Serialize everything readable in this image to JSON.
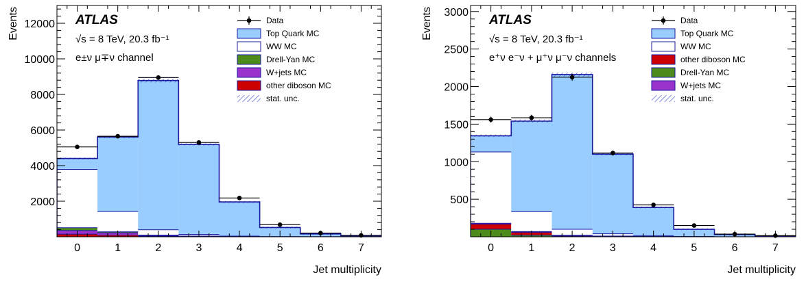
{
  "chart_data": [
    {
      "type": "bar",
      "stacked": true,
      "xlabel": "Jet multiplicity",
      "ylabel": "Events",
      "xlim": [
        -0.5,
        7.5
      ],
      "ylim": [
        0,
        13000
      ],
      "yticks": [
        "2000",
        "4000",
        "6000",
        "8000",
        "10000",
        "12000"
      ],
      "categories": [
        "0",
        "1",
        "2",
        "3",
        "4",
        "5",
        "6",
        "7"
      ],
      "atlas_label": "ATLAS",
      "energy_label": "√s = 8 TeV, 20.3 fb⁻¹",
      "channel_label": "e±ν μ∓ν channel",
      "legend_position": "top-right",
      "series": [
        {
          "name": "other diboson MC",
          "color": "#cc0000",
          "values": [
            150,
            90,
            35,
            15,
            5,
            2,
            1,
            0
          ]
        },
        {
          "name": "W+jets MC",
          "color": "#9933cc",
          "values": [
            200,
            130,
            40,
            20,
            10,
            3,
            1,
            0
          ]
        },
        {
          "name": "Drell-Yan MC",
          "color": "#4d8c1a",
          "values": [
            160,
            60,
            20,
            10,
            5,
            2,
            1,
            0
          ]
        },
        {
          "name": "WW MC",
          "color": "#ffffff",
          "values": [
            3280,
            1140,
            300,
            90,
            20,
            5,
            2,
            0
          ]
        },
        {
          "name": "Top Quark MC",
          "color": "#99ccff",
          "values": [
            610,
            4190,
            8385,
            5055,
            1920,
            508,
            155,
            50
          ]
        }
      ],
      "data": {
        "name": "Data",
        "values": [
          5050,
          5650,
          8950,
          5300,
          2180,
          680,
          210,
          80
        ]
      },
      "stat_unc_label": "stat. unc."
    },
    {
      "type": "bar",
      "stacked": true,
      "xlabel": "Jet multiplicity",
      "ylabel": "Events",
      "xlim": [
        -0.5,
        7.5
      ],
      "ylim": [
        0,
        3080
      ],
      "yticks": [
        "500",
        "1000",
        "1500",
        "2000",
        "2500",
        "3000"
      ],
      "categories": [
        "0",
        "1",
        "2",
        "3",
        "4",
        "5",
        "6",
        "7"
      ],
      "atlas_label": "ATLAS",
      "energy_label": "√s = 8 TeV, 20.3 fb⁻¹",
      "channel_label": "e⁺ν e⁻ν + μ⁺ν μ⁻ν channels",
      "legend_position": "top-right",
      "series": [
        {
          "name": "Drell-Yan MC",
          "color": "#4d8c1a",
          "values": [
            100,
            20,
            5,
            2,
            1,
            0,
            0,
            0
          ]
        },
        {
          "name": "other diboson MC",
          "color": "#cc0000",
          "values": [
            70,
            40,
            10,
            5,
            2,
            1,
            0,
            0
          ]
        },
        {
          "name": "W+jets MC",
          "color": "#9933cc",
          "values": [
            10,
            10,
            5,
            3,
            1,
            0,
            0,
            0
          ]
        },
        {
          "name": "WW MC",
          "color": "#ffffff",
          "values": [
            950,
            265,
            80,
            30,
            8,
            3,
            1,
            0
          ]
        },
        {
          "name": "Top Quark MC",
          "color": "#99ccff",
          "values": [
            215,
            1205,
            2060,
            1060,
            378,
            96,
            29,
            10
          ]
        }
      ],
      "data": {
        "name": "Data",
        "values": [
          1560,
          1585,
          2125,
          1115,
          425,
          150,
          35,
          15
        ]
      },
      "stat_unc_label": "stat. unc."
    }
  ],
  "legend_orders": [
    [
      "Data",
      "Top Quark MC",
      "WW MC",
      "Drell-Yan MC",
      "W+jets MC",
      "other diboson MC",
      "stat. unc."
    ],
    [
      "Data",
      "Top Quark MC",
      "WW MC",
      "other diboson MC",
      "Drell-Yan MC",
      "W+jets MC",
      "stat. unc."
    ]
  ]
}
